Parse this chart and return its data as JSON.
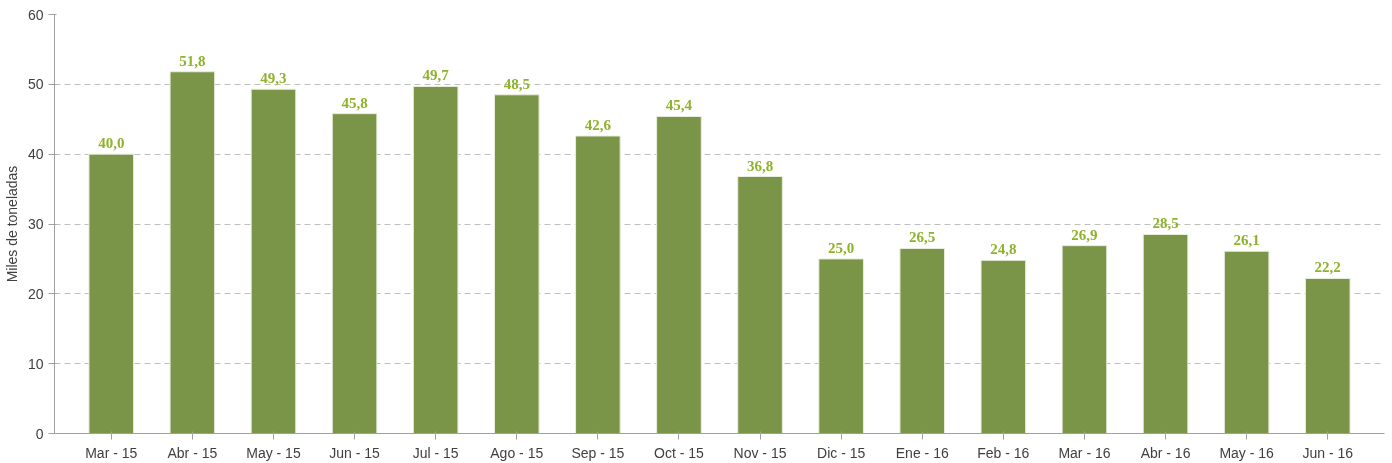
{
  "chart_data": {
    "type": "bar",
    "ylabel": "Miles de toneladas",
    "categories": [
      "Mar - 15",
      "Abr - 15",
      "May - 15",
      "Jun - 15",
      "Jul - 15",
      "Ago - 15",
      "Sep - 15",
      "Oct - 15",
      "Nov - 15",
      "Dic - 15",
      "Ene - 16",
      "Feb - 16",
      "Mar - 16",
      "Abr - 16",
      "May - 16",
      "Jun - 16"
    ],
    "values": [
      40.0,
      51.8,
      49.3,
      45.8,
      49.7,
      48.5,
      42.6,
      45.4,
      36.8,
      25.0,
      26.5,
      24.8,
      26.9,
      28.5,
      26.1,
      22.2
    ],
    "value_labels": [
      "40,0",
      "51,8",
      "49,3",
      "45,8",
      "49,7",
      "48,5",
      "42,6",
      "45,4",
      "36,8",
      "25,0",
      "26,5",
      "24,8",
      "26,9",
      "28,5",
      "26,1",
      "22,2"
    ],
    "color": "#7a9448",
    "ylim": [
      0,
      60
    ],
    "yticks": [
      0,
      10,
      20,
      30,
      40,
      50,
      60
    ],
    "grid": "y"
  }
}
